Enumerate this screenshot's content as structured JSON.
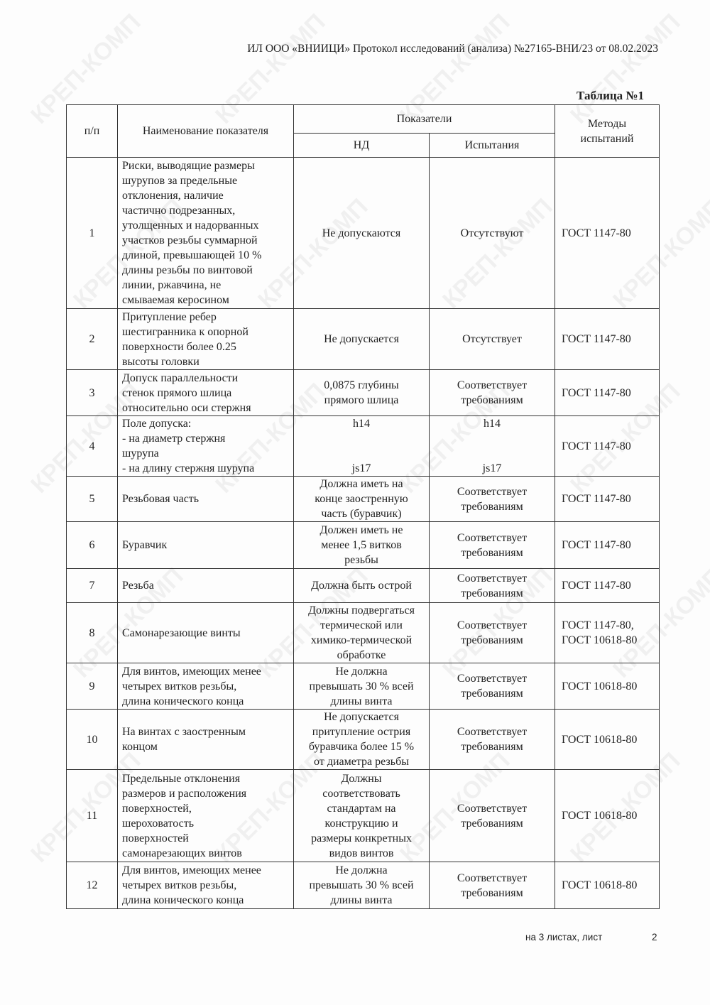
{
  "watermark": "КРЕП-КОМП",
  "header": "ИЛ ООО «ВНИИЦИ»  Протокол исследований (анализа)  №27165-ВНИ/23 от  08.02.2023",
  "table_title": "Таблица №1",
  "columns": {
    "num": "п/п",
    "name": "Наименование показателя",
    "indicators": "Показатели",
    "nd": "НД",
    "test": "Испытания",
    "methods": "Методы\nиспытаний"
  },
  "rows": [
    {
      "n": "1",
      "name": "Риски, выводящие размеры\nшурупов за предельные\nотклонения, наличие\nчастично подрезанных,\nутолщенных и надорванных\nучастков резьбы суммарной\nдлиной, превышающей 10 %\nдлины резьбы по винтовой\nлинии, ржавчина, не\nсмываемая керосином",
      "nd": "Не допускаются",
      "test": "Отсутствуют",
      "method": "ГОСТ 1147-80"
    },
    {
      "n": "2",
      "name": "Притупление ребер\nшестигранника к опорной\nповерхности более 0.25\nвысоты головки",
      "nd": "Не допускается",
      "test": "Отсутствует",
      "method": "ГОСТ 1147-80"
    },
    {
      "n": "3",
      "name": "Допуск параллельности\nстенок прямого шлица\nотносительно оси стержня",
      "nd": "0,0875 глубины\nпрямого шлица",
      "test": "Соответствует\nтребованиям",
      "method": "ГОСТ 1147-80"
    },
    {
      "n": "4",
      "name": "Поле допуска:\n- на диаметр стержня\nшурупа\n- на длину стержня шурупа",
      "nd": "h14\n\n\njs17",
      "test": "h14\n\n\njs17",
      "method": "ГОСТ 1147-80"
    },
    {
      "n": "5",
      "name": "Резьбовая часть",
      "nd": "Должна иметь на\nконце заостренную\nчасть (буравчик)",
      "test": "Соответствует\nтребованиям",
      "method": "ГОСТ 1147-80"
    },
    {
      "n": "6",
      "name": "Буравчик",
      "nd": "Должен иметь не\nменее 1,5 витков\nрезьбы",
      "test": "Соответствует\nтребованиям",
      "method": "ГОСТ 1147-80"
    },
    {
      "n": "7",
      "name": "Резьба",
      "nd": "Должна быть острой",
      "test": "Соответствует\nтребованиям",
      "method": "ГОСТ 1147-80"
    },
    {
      "n": "8",
      "name": "Самонарезающие винты",
      "nd": "Должны подвергаться\nтермической или\nхимико-термической\nобработке",
      "test": "Соответствует\nтребованиям",
      "method": "ГОСТ 1147-80,\nГОСТ 10618-80"
    },
    {
      "n": "9",
      "name": "Для винтов, имеющих менее\nчетырех витков резьбы,\nдлина конического конца",
      "nd": "Не должна\nпревышать 30 % всей\nдлины винта",
      "test": "Соответствует\nтребованиям",
      "method": "ГОСТ 10618-80"
    },
    {
      "n": "10",
      "name": "На винтах с заостренным\nконцом",
      "nd": "Не допускается\nпритупление острия\nбуравчика более 15 %\nот диаметра резьбы",
      "test": "Соответствует\nтребованиям",
      "method": "ГОСТ 10618-80"
    },
    {
      "n": "11",
      "name": "Предельные отклонения\nразмеров и расположения\nповерхностей,\nшероховатость\nповерхностей\nсамонарезающих винтов",
      "nd": "Должны\nсоответствовать\nстандартам на\nконструкцию и\nразмеры конкретных\nвидов винтов",
      "test": "Соответствует\nтребованиям",
      "method": "ГОСТ 10618-80"
    },
    {
      "n": "12",
      "name": "Для винтов, имеющих менее\nчетырех витков резьбы,\nдлина конического конца",
      "nd": "Не должна\nпревышать 30 % всей\nдлины винта",
      "test": "Соответствует\nтребованиям",
      "method": "ГОСТ 10618-80"
    }
  ],
  "footer": {
    "sheets": "на 3  листах, лист",
    "page": "2"
  }
}
